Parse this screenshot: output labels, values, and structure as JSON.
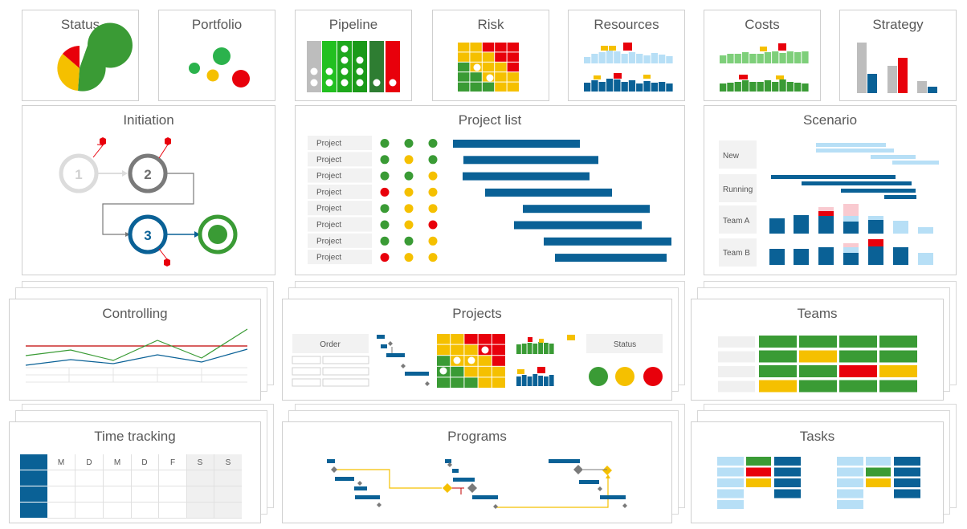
{
  "tiles": {
    "status": "Status",
    "portfolio": "Portfolio",
    "pipeline": "Pipeline",
    "risk": "Risk",
    "resources": "Resources",
    "costs": "Costs",
    "strategy": "Strategy",
    "initiation": "Initiation",
    "project_list": "Project list",
    "scenario": "Scenario",
    "controlling": "Controlling",
    "projects": "Projects",
    "teams": "Teams",
    "time_tracking": "Time tracking",
    "programs": "Programs",
    "tasks": "Tasks"
  },
  "initiation_steps": [
    "1",
    "2",
    "3"
  ],
  "project_list": {
    "row_label": "Project",
    "rows": [
      {
        "s": [
          "green",
          "green",
          "green"
        ]
      },
      {
        "s": [
          "green",
          "yellow",
          "green"
        ]
      },
      {
        "s": [
          "green",
          "green",
          "yellow"
        ]
      },
      {
        "s": [
          "red",
          "yellow",
          "yellow"
        ]
      },
      {
        "s": [
          "green",
          "yellow",
          "yellow"
        ]
      },
      {
        "s": [
          "green",
          "yellow",
          "red"
        ]
      },
      {
        "s": [
          "green",
          "green",
          "yellow"
        ]
      },
      {
        "s": [
          "red",
          "yellow",
          "yellow"
        ]
      }
    ]
  },
  "scenario_rows": [
    "New",
    "Running",
    "Team A",
    "Team B"
  ],
  "projects_tile": {
    "order_label": "Order",
    "status_label": "Status"
  },
  "time_tracking_days": [
    "M",
    "D",
    "M",
    "D",
    "F",
    "S",
    "S"
  ],
  "colors": {
    "green": "#3a9b35",
    "yellow": "#f5c000",
    "red": "#e8000b",
    "blue": "#0a6196",
    "lightblue": "#b7dff6",
    "gray": "#bdbdbd",
    "darkgray": "#7a7a7a"
  }
}
